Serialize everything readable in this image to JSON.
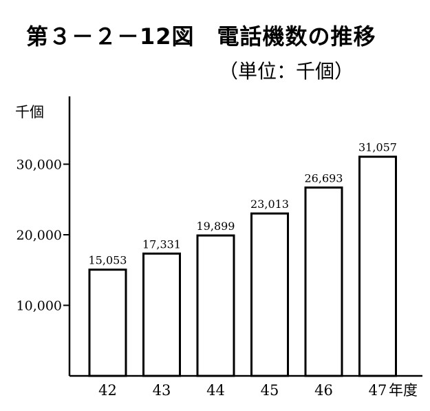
{
  "title": "第３－２－12図　電話機数の推移",
  "subtitle": "（単位：千個）",
  "chart_data": {
    "type": "bar",
    "categories": [
      "42",
      "43",
      "44",
      "45",
      "46",
      "47"
    ],
    "values": [
      15053,
      17331,
      19899,
      23013,
      26693,
      31057
    ],
    "value_labels": [
      "15,053",
      "17,331",
      "19,899",
      "23,013",
      "26,693",
      "31,057"
    ],
    "y_unit_label": "千個",
    "x_unit_label": "年度",
    "yticks": [
      10000,
      20000,
      30000
    ],
    "ytick_labels": [
      "10,000",
      "20,000",
      "30,000"
    ],
    "ylim": [
      0,
      40000
    ],
    "grid": false,
    "bar_fill": "#ffffff",
    "bar_stroke": "#000000"
  }
}
